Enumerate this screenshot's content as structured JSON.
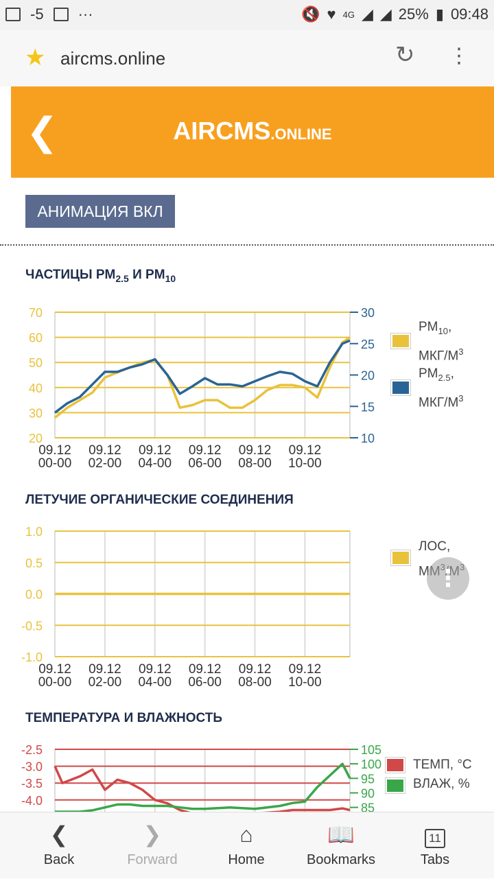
{
  "status_bar": {
    "left": [
      "-5",
      "···"
    ],
    "network": "4G",
    "battery": "25%",
    "time": "09:48"
  },
  "browser": {
    "url": "aircms.online",
    "icons": [
      "star-icon",
      "reload-icon",
      "more-vert-icon"
    ]
  },
  "header": {
    "back_icon": "chevron-left-icon",
    "title_main": "AIRCMS",
    "title_suffix": ".ONLINE",
    "bg_color": "#f7a020"
  },
  "animation_button": "АНИМАЦИЯ ВКЛ",
  "pm_section": {
    "title_a": "ЧАСТИЦЫ PM",
    "title_sub_a": "2.5",
    "title_b": " И PM",
    "title_sub_b": "10",
    "legend": [
      {
        "name": "PM10",
        "l1": "PM",
        "sub": "10",
        "l1_tail": ",",
        "l2": "МКГ/М",
        "sup": "3",
        "color": "#e9c23c"
      },
      {
        "name": "PM2.5",
        "l1": "PM",
        "sub": "2.5",
        "l1_tail": ",",
        "l2": "МКГ/М",
        "sup": "3",
        "color": "#2a6496"
      }
    ]
  },
  "voc_section": {
    "title": "ЛЕТУЧИЕ ОРГАНИЧЕСКИЕ СОЕДИНЕНИЯ",
    "legend": {
      "l1": "ЛОС,",
      "l2": "ММ",
      "sup": "3",
      "l2b": "/М",
      "sup2": "3",
      "color": "#e9c23c"
    }
  },
  "temp_section": {
    "title": "ТЕМПЕРАТУРА И ВЛАЖНОСТЬ",
    "legend": [
      {
        "label": "ТЕМП, °C",
        "color": "#d04848"
      },
      {
        "label": "ВЛАЖ, %",
        "color": "#3aa64a"
      }
    ]
  },
  "fab_icon": "more-vert-icon",
  "bottom_nav": [
    {
      "label": "Back",
      "icon": "chevron-left-icon",
      "enabled": true
    },
    {
      "label": "Forward",
      "icon": "chevron-right-icon",
      "enabled": false
    },
    {
      "label": "Home",
      "icon": "home-icon",
      "enabled": true
    },
    {
      "label": "Bookmarks",
      "icon": "book-icon",
      "enabled": true
    },
    {
      "label": "Tabs",
      "icon": "tabs-icon",
      "tab_count": "11",
      "enabled": true
    }
  ],
  "chart_data": [
    {
      "type": "line",
      "title": "ЧАСТИЦЫ PM2.5 И PM10",
      "x_ticks": [
        "09.12 00-00",
        "09.12 02-00",
        "09.12 04-00",
        "09.12 06-00",
        "09.12 08-00",
        "09.12 10-00"
      ],
      "x_hours": [
        0,
        0.5,
        1,
        1.5,
        2,
        2.5,
        3,
        3.5,
        4,
        4.5,
        5,
        5.5,
        6,
        6.5,
        7,
        7.5,
        8,
        8.5,
        9,
        9.5,
        10,
        10.5,
        11,
        11.5,
        11.8
      ],
      "y_left": {
        "ticks": [
          20,
          30,
          40,
          50,
          60,
          70
        ],
        "range": [
          20,
          70
        ],
        "color": "#e9c23c"
      },
      "y_right": {
        "ticks": [
          10,
          15,
          20,
          25,
          30
        ],
        "range": [
          10,
          30
        ],
        "color": "#2a6496"
      },
      "series": [
        {
          "name": "PM10",
          "axis": "left",
          "color": "#e9c23c",
          "values": [
            28,
            32,
            35,
            38,
            44,
            46,
            48,
            50,
            51,
            45,
            32,
            33,
            35,
            35,
            32,
            32,
            35,
            39,
            41,
            41,
            40,
            36,
            48,
            58,
            60
          ]
        },
        {
          "name": "PM2.5",
          "axis": "right",
          "color": "#2a6496",
          "values": [
            14,
            15.5,
            16.5,
            18.5,
            20.5,
            20.5,
            21.2,
            21.7,
            22.5,
            20,
            17,
            18.2,
            19.5,
            18.5,
            18.5,
            18.2,
            19,
            19.8,
            20.5,
            20.2,
            19,
            18.2,
            22,
            25,
            25.5
          ]
        }
      ],
      "grid": true,
      "legend": "right"
    },
    {
      "type": "line",
      "title": "ЛЕТУЧИЕ ОРГАНИЧЕСКИЕ СОЕДИНЕНИЯ",
      "x_ticks": [
        "09.12 00-00",
        "09.12 02-00",
        "09.12 04-00",
        "09.12 06-00",
        "09.12 08-00",
        "09.12 10-00"
      ],
      "x_hours": [
        0,
        11.8
      ],
      "y_left": {
        "ticks": [
          "1.0",
          "0.5",
          "0.0",
          "-0.5",
          "-1.0"
        ],
        "range": [
          -1,
          1
        ],
        "color": "#e9c23c"
      },
      "series": [
        {
          "name": "ЛОС",
          "axis": "left",
          "color": "#e9c23c",
          "values": [
            0,
            0
          ]
        }
      ],
      "grid": true,
      "legend": "right"
    },
    {
      "type": "line",
      "title": "ТЕМПЕРАТУРА И ВЛАЖНОСТЬ",
      "x_hours": [
        0,
        0.3,
        1,
        1.5,
        2,
        2.5,
        3,
        3.5,
        4,
        4.5,
        5,
        5.5,
        6,
        7,
        8,
        9,
        9.5,
        10,
        10.5,
        11,
        11.5,
        11.8
      ],
      "y_left": {
        "ticks": [
          "-2.5",
          "-3.0",
          "-3.5",
          "-4.0"
        ],
        "range": [
          -4.35,
          -2.5
        ],
        "color": "#d04848"
      },
      "y_right": {
        "ticks": [
          105,
          100,
          95,
          90,
          85
        ],
        "range": [
          83.5,
          105
        ],
        "color": "#3aa64a"
      },
      "series": [
        {
          "name": "ТЕМП, °C",
          "axis": "left",
          "color": "#d04848",
          "values": [
            -3.0,
            -3.5,
            -3.3,
            -3.1,
            -3.7,
            -3.4,
            -3.5,
            -3.7,
            -4.0,
            -4.1,
            -4.3,
            -4.4,
            -4.4,
            -4.4,
            -4.4,
            -4.35,
            -4.3,
            -4.3,
            -4.3,
            -4.3,
            -4.25,
            -4.3
          ]
        },
        {
          "name": "ВЛАЖ, %",
          "axis": "right",
          "color": "#3aa64a",
          "values": [
            83.5,
            83.5,
            83.5,
            84,
            85,
            86,
            86,
            85.5,
            85.5,
            85.5,
            85,
            84.5,
            84.5,
            85,
            84.5,
            85.5,
            86.5,
            87,
            92,
            96,
            100,
            95
          ]
        }
      ],
      "grid": true,
      "legend": "right"
    }
  ]
}
